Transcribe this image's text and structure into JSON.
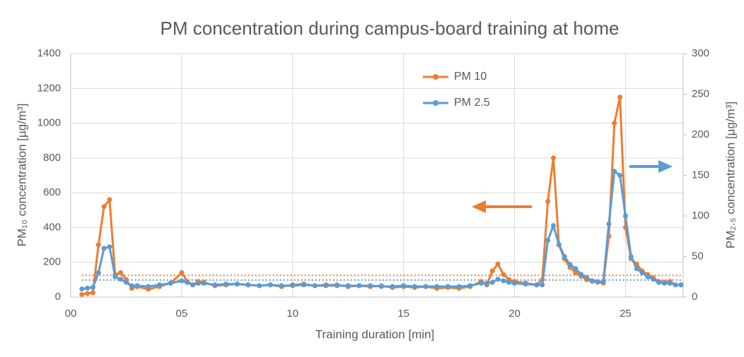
{
  "chart_data": {
    "type": "line",
    "title": "PM concentration during campus-board training at home",
    "x_label": "Training duration [min]",
    "y_label": "PM₁₀ concentration [µg/m³]",
    "y2_label": "PM₂.₅ concentration [µg/m³]",
    "xlim": [
      0,
      27.6
    ],
    "xticks": [
      {
        "value": 0,
        "label": "00"
      },
      {
        "value": 5,
        "label": "05"
      },
      10,
      15,
      20,
      25
    ],
    "ylim": [
      0,
      1400
    ],
    "yticks": [
      0,
      200,
      400,
      600,
      800,
      1000,
      1200,
      1400
    ],
    "y2lim": [
      0,
      300
    ],
    "y2ticks": [
      0,
      50,
      100,
      150,
      200,
      250,
      300
    ],
    "grid": true,
    "legend": "top",
    "x": [
      0.5,
      0.75,
      1.0,
      1.25,
      1.5,
      1.75,
      2.0,
      2.25,
      2.5,
      2.75,
      3.0,
      3.5,
      4.0,
      4.5,
      5.0,
      5.25,
      5.5,
      5.75,
      6.0,
      6.5,
      7.0,
      7.5,
      8.0,
      8.5,
      9.0,
      9.5,
      10.0,
      10.5,
      11.0,
      11.5,
      12.0,
      12.5,
      13.0,
      13.5,
      14.0,
      14.5,
      15.0,
      15.5,
      16.0,
      16.5,
      17.0,
      17.5,
      18.0,
      18.5,
      18.75,
      19.0,
      19.25,
      19.5,
      19.75,
      20.0,
      20.5,
      21.0,
      21.25,
      21.5,
      21.75,
      22.0,
      22.25,
      22.5,
      22.75,
      23.0,
      23.25,
      23.5,
      23.75,
      24.0,
      24.25,
      24.5,
      24.75,
      25.0,
      25.25,
      25.5,
      25.75,
      26.0,
      26.25,
      26.5,
      26.75,
      27.0,
      27.25,
      27.5
    ],
    "series": [
      {
        "name": "PM 10",
        "color": "#ED7D31",
        "axis": "y",
        "values": [
          15,
          20,
          25,
          300,
          520,
          560,
          130,
          140,
          100,
          50,
          60,
          45,
          60,
          80,
          140,
          90,
          70,
          90,
          85,
          65,
          70,
          75,
          70,
          65,
          70,
          60,
          70,
          75,
          65,
          70,
          70,
          60,
          65,
          60,
          65,
          55,
          60,
          55,
          60,
          50,
          55,
          50,
          60,
          90,
          70,
          150,
          190,
          130,
          100,
          90,
          80,
          70,
          100,
          550,
          800,
          300,
          220,
          170,
          140,
          120,
          100,
          90,
          85,
          80,
          350,
          1000,
          1150,
          400,
          220,
          190,
          150,
          130,
          110,
          90,
          85,
          90,
          70,
          70
        ]
      },
      {
        "name": "PM 2.5",
        "color": "#5B9BD5",
        "axis": "y2",
        "values": [
          10,
          11,
          12,
          30,
          60,
          62,
          25,
          22,
          18,
          14,
          14,
          13,
          15,
          17,
          20,
          18,
          15,
          17,
          17,
          15,
          16,
          16,
          15,
          14,
          15,
          14,
          14,
          15,
          14,
          14,
          14,
          14,
          14,
          14,
          13,
          13,
          14,
          13,
          13,
          13,
          13,
          13,
          14,
          17,
          17,
          18,
          22,
          20,
          18,
          17,
          16,
          15,
          15,
          70,
          88,
          65,
          50,
          40,
          35,
          28,
          24,
          20,
          19,
          19,
          90,
          155,
          150,
          100,
          50,
          35,
          30,
          25,
          22,
          18,
          17,
          17,
          15,
          15
        ]
      }
    ],
    "reference_lines": [
      {
        "value": 125,
        "axis": "y",
        "color": "#ED7D31"
      },
      {
        "value": 21,
        "axis": "y2",
        "color": "#5B9BD5"
      }
    ]
  }
}
